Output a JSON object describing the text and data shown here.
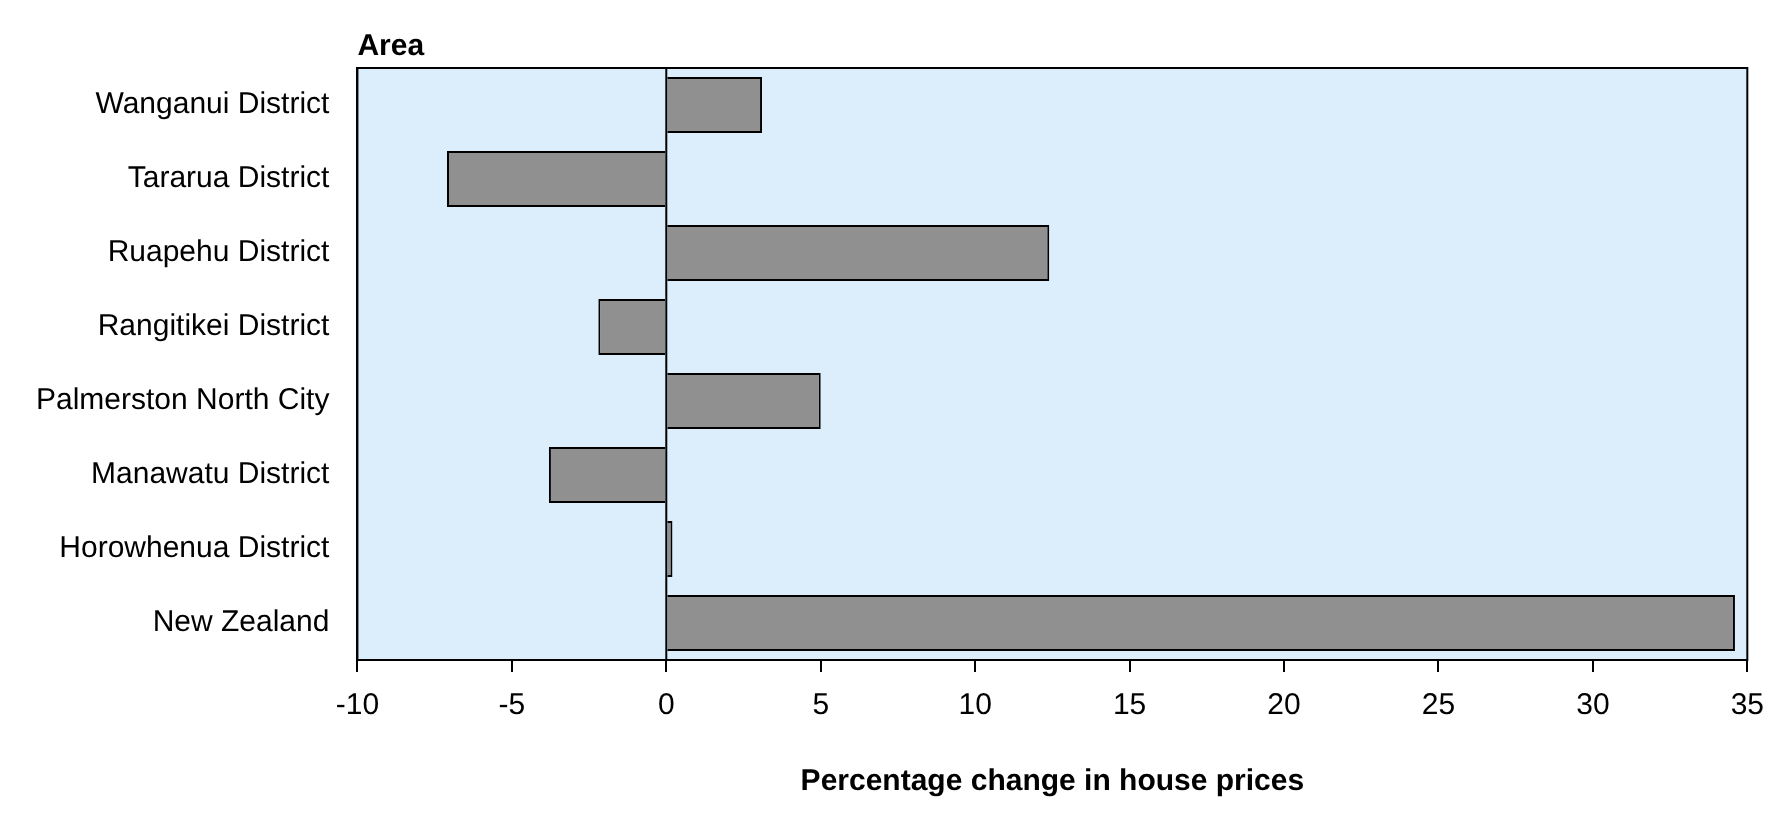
{
  "chart_data": {
    "type": "bar",
    "orientation": "horizontal",
    "ylabel": "Area",
    "xlabel": "Percentage change in house prices",
    "categories": [
      "Wanganui District",
      "Tararua District",
      "Ruapehu District",
      "Rangitikei District",
      "Palmerston North City",
      "Manawatu District",
      "Horowhenua District",
      "New Zealand"
    ],
    "values": [
      3.1,
      -7.1,
      12.4,
      -2.2,
      5.0,
      -3.8,
      0.2,
      34.6
    ],
    "color": "#909090",
    "xlim": [
      -10,
      35
    ],
    "xticks": [
      -10,
      -5,
      0,
      5,
      10,
      15,
      20,
      25,
      30,
      35
    ],
    "ref_lines": [
      {
        "axis": "x",
        "value": 0,
        "color": "#000000"
      }
    ],
    "grid": false,
    "legend": false
  }
}
